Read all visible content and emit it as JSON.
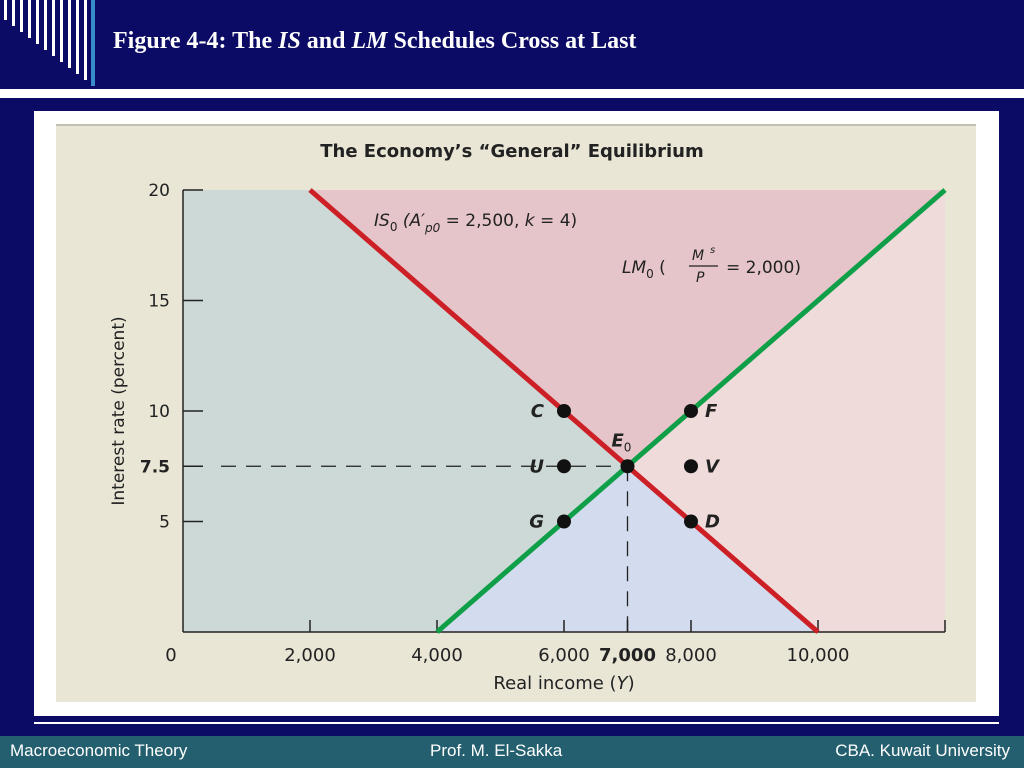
{
  "slide": {
    "title_parts": [
      "Figure 4-4: The ",
      "IS",
      " and ",
      "LM",
      " Schedules Cross at Last"
    ]
  },
  "footer": {
    "left": "Macroeconomic Theory",
    "center": "Prof. M. El-Sakka",
    "right": "CBA. Kuwait University"
  },
  "colors": {
    "background": "#0b0b66",
    "footer_bar": "#245f6f",
    "is_curve": "#cc1f26",
    "lm_curve": "#0e9f48",
    "region_left": "#cdd9d6",
    "region_top": "#e5c5c9",
    "region_right": "#f0dbdb",
    "region_bottom": "#d3dcef",
    "plot_background": "#e9e6d6"
  },
  "chart_data": {
    "type": "line",
    "title": "The Economy’s “General” Equilibrium",
    "xlabel": "Real income (Y)",
    "ylabel": "Interest rate (percent)",
    "xlim": [
      0,
      12000
    ],
    "ylim": [
      0,
      20
    ],
    "x_ticks": [
      {
        "value": 0,
        "label": "0"
      },
      {
        "value": 2000,
        "label": "2,000"
      },
      {
        "value": 4000,
        "label": "4,000"
      },
      {
        "value": 6000,
        "label": "6,000"
      },
      {
        "value": 7000,
        "label": "7,000"
      },
      {
        "value": 8000,
        "label": "8,000"
      },
      {
        "value": 10000,
        "label": "10,000"
      }
    ],
    "y_ticks": [
      {
        "value": 20,
        "label": "20"
      },
      {
        "value": 15,
        "label": "15"
      },
      {
        "value": 10,
        "label": "10"
      },
      {
        "value": 7.5,
        "label": "7.5"
      },
      {
        "value": 5,
        "label": "5"
      }
    ],
    "series": [
      {
        "name": "IS0 (A′p0 = 2,500, k = 4)",
        "color": "#cc1f26",
        "x": [
          2000,
          10000
        ],
        "y": [
          20,
          0
        ]
      },
      {
        "name": "LM0 (Ms/P = 2,000)",
        "color": "#0e9f48",
        "x": [
          4000,
          12000
        ],
        "y": [
          0,
          20
        ]
      }
    ],
    "labels": {
      "is": {
        "main": "IS",
        "sub": "0",
        "rest1": " (A′",
        "sub2": "p0",
        "rest2": " = 2,500, k = 4)"
      },
      "lm": {
        "main": "LM",
        "sub": "0",
        "num": "M",
        "sup": "s",
        "den": "P",
        "rest": "= 2,000)"
      }
    },
    "points": [
      {
        "label": "C",
        "x": 6000,
        "y": 10,
        "side": "left"
      },
      {
        "label": "F",
        "x": 8000,
        "y": 10,
        "side": "right"
      },
      {
        "label": "U",
        "x": 6000,
        "y": 7.5,
        "side": "left"
      },
      {
        "label": "V",
        "x": 8000,
        "y": 7.5,
        "side": "right"
      },
      {
        "label": "G",
        "x": 6000,
        "y": 5,
        "side": "left"
      },
      {
        "label": "D",
        "x": 8000,
        "y": 5,
        "side": "right"
      },
      {
        "label": "E",
        "sub": "0",
        "x": 7000,
        "y": 7.5,
        "side": "equilibrium"
      }
    ],
    "equilibrium": {
      "x": 7000,
      "y": 7.5
    },
    "grid": false
  }
}
